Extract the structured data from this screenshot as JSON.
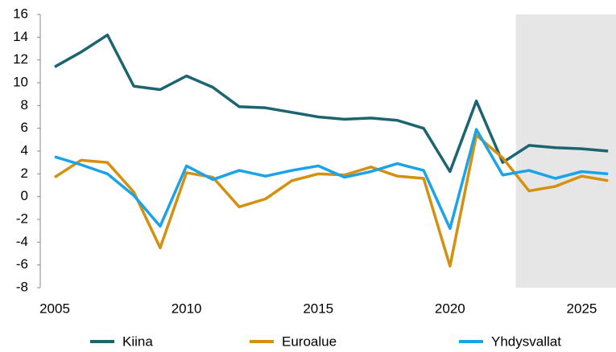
{
  "chart_data": {
    "type": "line",
    "x": [
      2005,
      2006,
      2007,
      2008,
      2009,
      2010,
      2011,
      2012,
      2013,
      2014,
      2015,
      2016,
      2017,
      2018,
      2019,
      2020,
      2021,
      2022,
      2023,
      2024,
      2025,
      2026
    ],
    "series": [
      {
        "name": "Kiina",
        "color": "#1b6470",
        "values": [
          11.4,
          12.7,
          14.2,
          9.7,
          9.4,
          10.6,
          9.6,
          7.9,
          7.8,
          7.4,
          7.0,
          6.8,
          6.9,
          6.7,
          6.0,
          2.2,
          8.4,
          3.0,
          4.5,
          4.3,
          4.2,
          4.0
        ]
      },
      {
        "name": "Euroalue",
        "color": "#d4900f",
        "values": [
          1.7,
          3.2,
          3.0,
          0.4,
          -4.5,
          2.1,
          1.7,
          -0.9,
          -0.2,
          1.4,
          2.0,
          1.9,
          2.6,
          1.8,
          1.6,
          -6.1,
          5.4,
          3.4,
          0.5,
          0.9,
          1.8,
          1.4
        ]
      },
      {
        "name": "Yhdysvallat",
        "color": "#1aa3e8",
        "values": [
          3.5,
          2.8,
          2.0,
          0.1,
          -2.6,
          2.7,
          1.5,
          2.3,
          1.8,
          2.3,
          2.7,
          1.7,
          2.2,
          2.9,
          2.3,
          -2.8,
          5.9,
          1.9,
          2.3,
          1.6,
          2.2,
          2.0
        ]
      }
    ],
    "xlim": [
      2004.45,
      2026.3
    ],
    "xticks": [
      2005,
      2010,
      2015,
      2020,
      2025
    ],
    "ylim": [
      -8,
      16
    ],
    "yticks": [
      -8,
      -6,
      -4,
      -2,
      0,
      2,
      4,
      6,
      8,
      10,
      12,
      14,
      16
    ],
    "shade_from": 2022.5,
    "shade_color": "#e6e6e6",
    "grid": false,
    "legend": "bottom"
  }
}
